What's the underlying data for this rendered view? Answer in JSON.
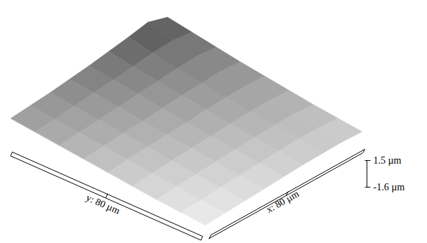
{
  "chart_data": {
    "type": "surface",
    "x_label": "x: 80 µm",
    "y_label": "y: 80 µm",
    "x": [
      0,
      10,
      20,
      30,
      40,
      50,
      60,
      70,
      80
    ],
    "y": [
      0,
      10,
      20,
      30,
      40,
      50,
      60,
      70,
      80
    ],
    "z": [
      [
        -1.5,
        -1.4,
        -1.3,
        -1.2,
        -1.1,
        -1.0,
        -0.95,
        -0.9,
        -0.95
      ],
      [
        -1.35,
        -1.25,
        -1.1,
        -1.0,
        -0.9,
        -0.8,
        -0.7,
        -0.7,
        -0.75
      ],
      [
        -1.2,
        -1.05,
        -0.95,
        -0.8,
        -0.7,
        -0.6,
        -0.5,
        -0.45,
        -0.55
      ],
      [
        -1.0,
        -0.85,
        -0.75,
        -0.6,
        -0.5,
        -0.4,
        -0.3,
        -0.25,
        -0.3
      ],
      [
        -0.8,
        -0.65,
        -0.5,
        -0.4,
        -0.3,
        -0.15,
        -0.05,
        0.0,
        -0.05
      ],
      [
        -0.6,
        -0.45,
        -0.3,
        -0.2,
        -0.05,
        0.1,
        0.2,
        0.3,
        0.2
      ],
      [
        -0.4,
        -0.25,
        -0.1,
        0.05,
        0.2,
        0.35,
        0.5,
        0.6,
        0.5
      ],
      [
        -0.2,
        -0.05,
        0.1,
        0.3,
        0.45,
        0.65,
        0.85,
        0.95,
        0.8
      ],
      [
        0.0,
        0.15,
        0.3,
        0.5,
        0.7,
        0.95,
        1.2,
        1.5,
        1.1
      ]
    ],
    "xlim": [
      0,
      80
    ],
    "ylim": [
      0,
      80
    ],
    "zlim": [
      -1.6,
      1.5
    ],
    "zticks": [
      {
        "value": 1.5,
        "label": "1.5 µm"
      },
      {
        "value": -1.6,
        "label": "-1.6 µm"
      }
    ]
  }
}
